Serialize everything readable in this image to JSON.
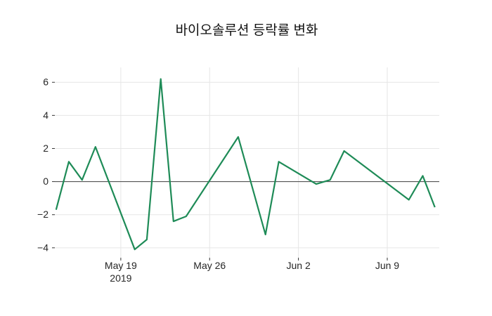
{
  "title": "바이오솔루션 등락률 변화",
  "colors": {
    "background": "#ffffff",
    "line": "#1e8b57",
    "grid": "#e6e6e6",
    "zero_line": "#404040",
    "tick_mark": "#333333",
    "tick_text": "#262626",
    "title_text": "#111111"
  },
  "chart_data": {
    "type": "line",
    "title": "바이오솔루션 등락률 변화",
    "xlabel": "",
    "ylabel": "",
    "legend_position": "none",
    "grid": true,
    "zero_line": true,
    "x_unit": "days since May 19 2019",
    "x": [
      -5.1,
      -4.1,
      -3.05,
      -2.0,
      1.1,
      2.05,
      3.15,
      4.15,
      5.15,
      9.25,
      11.4,
      12.45,
      15.4,
      16.5,
      17.6,
      22.7,
      23.8,
      24.75
    ],
    "values": [
      -1.7,
      1.2,
      0.1,
      2.1,
      -4.1,
      -3.5,
      6.2,
      -2.4,
      -2.1,
      2.7,
      -3.2,
      1.2,
      -0.15,
      0.1,
      1.85,
      -1.1,
      0.35,
      -1.55
    ],
    "xlim": [
      -5.2,
      25.1
    ],
    "ylim": [
      -4.6,
      6.9
    ],
    "y_ticks": [
      6,
      4,
      2,
      0,
      -2,
      -4
    ],
    "y_tick_labels": [
      "6",
      "4",
      "2",
      "0",
      "−2",
      "−4"
    ],
    "x_ticks": [
      0,
      7,
      14,
      21
    ],
    "x_tick_labels": [
      [
        "May 19",
        "2019"
      ],
      [
        "May 26"
      ],
      [
        "Jun 2"
      ],
      [
        "Jun 9"
      ]
    ]
  }
}
